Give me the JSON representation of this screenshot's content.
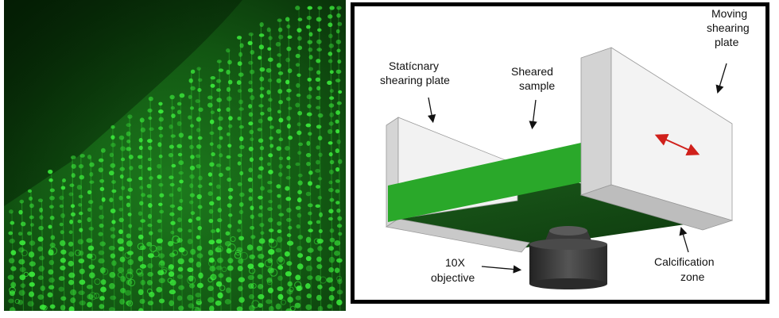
{
  "micrograph": {
    "icon": "fluorescent-chondrocyte-micrograph",
    "colors": {
      "background": "#0b3d0b",
      "cells": "#3df03d"
    }
  },
  "diagram": {
    "labels": {
      "stationary_plate": [
        "Statícnary",
        "shearing plate"
      ],
      "sheared_sample": [
        "Sheared",
        "sample"
      ],
      "moving_plate": [
        "Moving",
        "shearing",
        "plate"
      ],
      "objective": [
        "10X",
        "objective"
      ],
      "calcification": [
        "Calcification",
        "zone"
      ]
    },
    "colors": {
      "plate_face": "#f0f0f0",
      "plate_side": "#c8c8c8",
      "sample": "#29a829",
      "arrow_motion": "#d0201b",
      "objective": "#3a3a3a"
    }
  }
}
